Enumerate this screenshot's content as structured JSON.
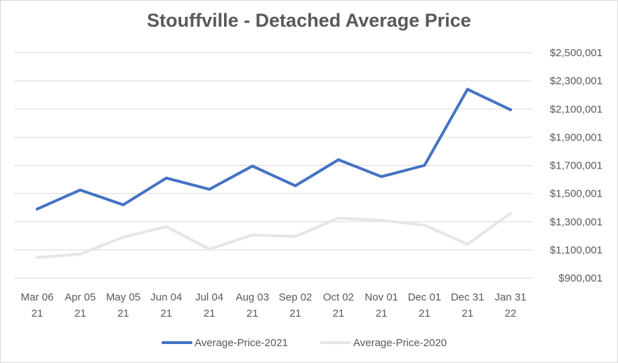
{
  "chart_data": {
    "type": "line",
    "title": "Stouffville - Detached Average Price",
    "xlabel": "",
    "ylabel": "",
    "categories": [
      [
        "Mar 06",
        "21"
      ],
      [
        "Apr 05",
        "21"
      ],
      [
        "May 05",
        "21"
      ],
      [
        "Jun 04",
        "21"
      ],
      [
        "Jul 04",
        "21"
      ],
      [
        "Aug 03",
        "21"
      ],
      [
        "Sep 02",
        "21"
      ],
      [
        "Oct 02",
        "21"
      ],
      [
        "Nov 01",
        "21"
      ],
      [
        "Dec 01",
        "21"
      ],
      [
        "Dec 31",
        "21"
      ],
      [
        "Jan 31",
        "22"
      ]
    ],
    "y_ticks": [
      "$900,001",
      "$1,100,001",
      "$1,300,001",
      "$1,500,001",
      "$1,700,001",
      "$1,900,001",
      "$2,100,001",
      "$2,300,001",
      "$2,500,001"
    ],
    "ylim": [
      900001,
      2500001
    ],
    "grid": true,
    "legend_position": "bottom",
    "series": [
      {
        "name": "Average-Price-2021",
        "color": "#4472c4",
        "values": [
          1390000,
          1525000,
          1420000,
          1610000,
          1530000,
          1695000,
          1555000,
          1740000,
          1620000,
          1700000,
          2240000,
          2095000
        ]
      },
      {
        "name": "Average-Price-2020",
        "color": "#e7e6e6",
        "values": [
          1045000,
          1070000,
          1190000,
          1265000,
          1105000,
          1205000,
          1195000,
          1325000,
          1310000,
          1275000,
          1140000,
          1360000
        ]
      }
    ]
  }
}
